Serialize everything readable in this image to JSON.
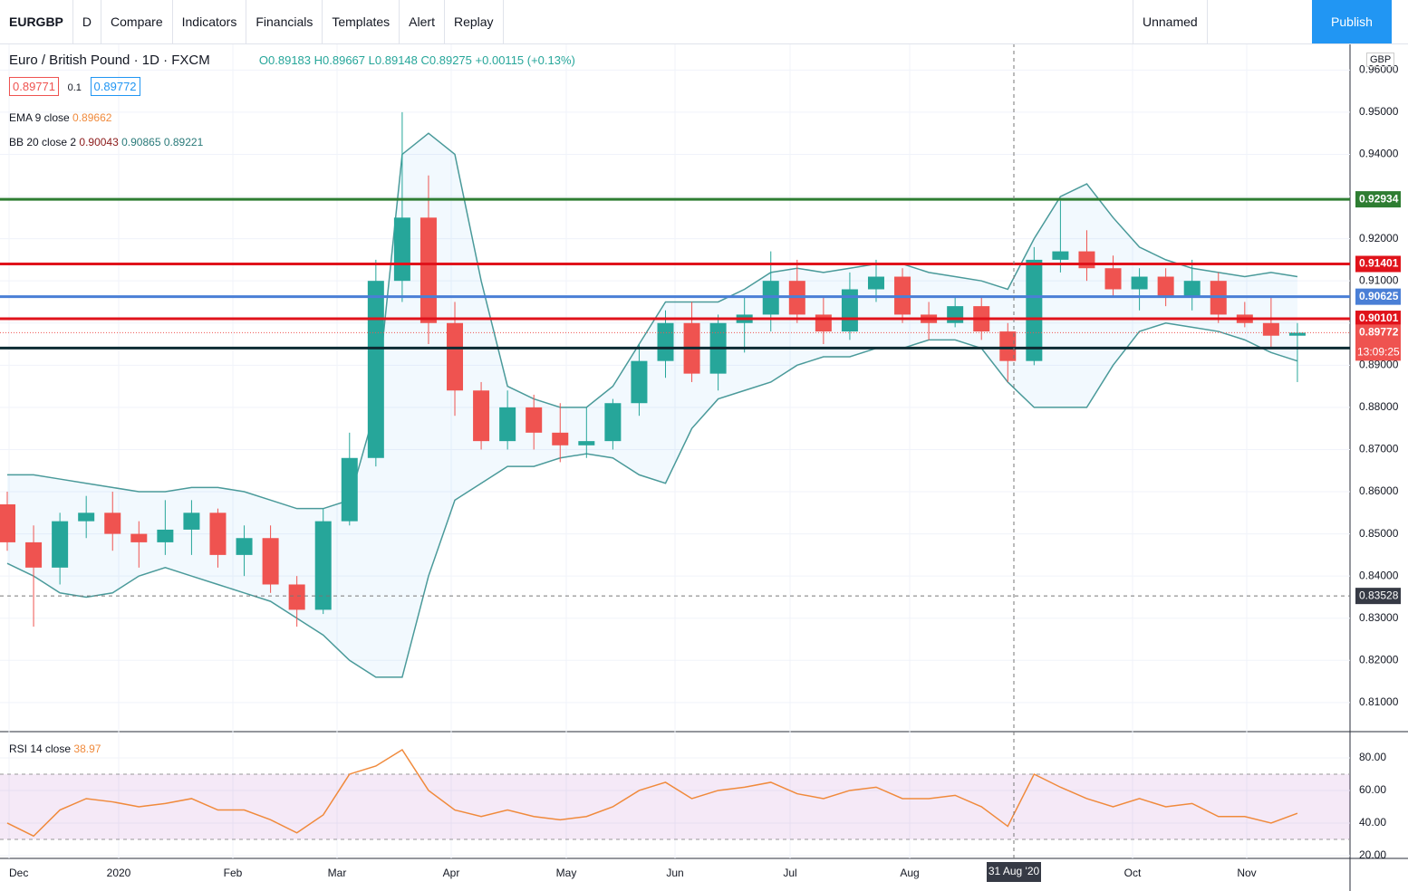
{
  "toolbar": {
    "symbol": "EURGBP",
    "interval": "D",
    "compare": "Compare",
    "indicators": "Indicators",
    "financials": "Financials",
    "templates": "Templates",
    "alert": "Alert",
    "replay": "Replay",
    "layout": "Unnamed",
    "publish": "Publish"
  },
  "legend": {
    "title": "Euro / British Pound · 1D · FXCM",
    "open": "O0.89183",
    "high": "H0.89667",
    "low": "L0.89148",
    "close": "C0.89275",
    "change": "+0.00115 (+0.13%)",
    "bid": "0.89771",
    "spread": "0.1",
    "ask": "0.89772",
    "ema": "EMA 9 close",
    "ema_value": "0.89662",
    "bb": "BB 20 close 2",
    "bb_basis": "0.90043",
    "bb_upper": "0.90865",
    "bb_lower": "0.89221",
    "rsi": "RSI 14 close",
    "rsi_value": "38.97"
  },
  "currency": "GBP",
  "countdown": "13:09:25",
  "crosshair_date": "31 Aug '20",
  "time_axis": [
    "Dec",
    "2020",
    "Feb",
    "Mar",
    "Apr",
    "May",
    "Jun",
    "Jul",
    "Aug",
    "Oct",
    "Nov"
  ],
  "chart_data": [
    {
      "type": "candlestick",
      "up_color": "#26a69a",
      "down_color": "#ef5350",
      "ylim": [
        0.8031,
        0.9663
      ],
      "yticks": [
        {
          "value": 0.81,
          "label": "0.81000"
        },
        {
          "value": 0.82,
          "label": "0.82000"
        },
        {
          "value": 0.83,
          "label": "0.83000"
        },
        {
          "value": 0.84,
          "label": "0.84000"
        },
        {
          "value": 0.85,
          "label": "0.85000"
        },
        {
          "value": 0.86,
          "label": "0.86000"
        },
        {
          "value": 0.87,
          "label": "0.87000"
        },
        {
          "value": 0.88,
          "label": "0.88000"
        },
        {
          "value": 0.89,
          "label": "0.89000"
        },
        {
          "value": 0.9,
          "label": "0.90000"
        },
        {
          "value": 0.91,
          "label": "0.91000"
        },
        {
          "value": 0.92,
          "label": "0.92000"
        },
        {
          "value": 0.93,
          "label": "0.93000"
        },
        {
          "value": 0.94,
          "label": "0.94000"
        },
        {
          "value": 0.95,
          "label": "0.95000"
        },
        {
          "value": 0.96,
          "label": "0.96000"
        }
      ],
      "open": [
        0.857,
        0.848,
        0.842,
        0.853,
        0.855,
        0.85,
        0.848,
        0.851,
        0.855,
        0.845,
        0.849,
        0.838,
        0.832,
        0.853,
        0.868,
        0.91,
        0.925,
        0.9,
        0.884,
        0.872,
        0.88,
        0.874,
        0.871,
        0.872,
        0.881,
        0.891,
        0.9,
        0.888,
        0.9,
        0.902,
        0.91,
        0.902,
        0.898,
        0.908,
        0.911,
        0.902,
        0.9,
        0.904,
        0.898,
        0.891,
        0.915,
        0.917,
        0.913,
        0.908,
        0.911,
        0.906,
        0.91,
        0.902,
        0.9,
        0.897
      ],
      "high": [
        0.86,
        0.852,
        0.855,
        0.859,
        0.86,
        0.853,
        0.858,
        0.858,
        0.856,
        0.852,
        0.852,
        0.84,
        0.856,
        0.874,
        0.915,
        0.95,
        0.935,
        0.905,
        0.886,
        0.884,
        0.883,
        0.881,
        0.88,
        0.882,
        0.895,
        0.903,
        0.905,
        0.902,
        0.906,
        0.917,
        0.915,
        0.906,
        0.912,
        0.915,
        0.913,
        0.905,
        0.906,
        0.906,
        0.9,
        0.918,
        0.929,
        0.922,
        0.916,
        0.913,
        0.913,
        0.915,
        0.912,
        0.905,
        0.906,
        0.9
      ],
      "low": [
        0.846,
        0.828,
        0.838,
        0.849,
        0.846,
        0.842,
        0.845,
        0.845,
        0.842,
        0.84,
        0.836,
        0.828,
        0.831,
        0.852,
        0.866,
        0.905,
        0.895,
        0.878,
        0.87,
        0.87,
        0.87,
        0.867,
        0.868,
        0.87,
        0.878,
        0.887,
        0.886,
        0.884,
        0.893,
        0.898,
        0.9,
        0.895,
        0.896,
        0.905,
        0.9,
        0.896,
        0.899,
        0.896,
        0.886,
        0.89,
        0.912,
        0.91,
        0.906,
        0.903,
        0.904,
        0.903,
        0.9,
        0.899,
        0.894,
        0.886
      ],
      "close": [
        0.848,
        0.842,
        0.853,
        0.855,
        0.85,
        0.848,
        0.851,
        0.855,
        0.845,
        0.849,
        0.838,
        0.832,
        0.853,
        0.868,
        0.91,
        0.925,
        0.9,
        0.884,
        0.872,
        0.88,
        0.874,
        0.871,
        0.872,
        0.881,
        0.891,
        0.9,
        0.888,
        0.9,
        0.902,
        0.91,
        0.902,
        0.898,
        0.908,
        0.911,
        0.902,
        0.9,
        0.904,
        0.898,
        0.891,
        0.915,
        0.917,
        0.913,
        0.908,
        0.911,
        0.906,
        0.91,
        0.902,
        0.9,
        0.897,
        0.8977
      ],
      "bb_upper": [
        0.864,
        0.864,
        0.863,
        0.862,
        0.861,
        0.86,
        0.86,
        0.861,
        0.861,
        0.86,
        0.858,
        0.856,
        0.856,
        0.858,
        0.88,
        0.94,
        0.945,
        0.94,
        0.91,
        0.885,
        0.882,
        0.88,
        0.88,
        0.885,
        0.895,
        0.905,
        0.905,
        0.905,
        0.908,
        0.912,
        0.913,
        0.912,
        0.913,
        0.914,
        0.914,
        0.912,
        0.911,
        0.91,
        0.908,
        0.92,
        0.93,
        0.933,
        0.925,
        0.918,
        0.915,
        0.913,
        0.912,
        0.911,
        0.912,
        0.911
      ],
      "bb_lower": [
        0.843,
        0.84,
        0.836,
        0.835,
        0.836,
        0.84,
        0.842,
        0.84,
        0.838,
        0.836,
        0.834,
        0.83,
        0.826,
        0.82,
        0.816,
        0.816,
        0.84,
        0.858,
        0.862,
        0.866,
        0.866,
        0.868,
        0.869,
        0.868,
        0.864,
        0.862,
        0.875,
        0.882,
        0.884,
        0.886,
        0.89,
        0.892,
        0.892,
        0.894,
        0.894,
        0.896,
        0.896,
        0.894,
        0.886,
        0.88,
        0.88,
        0.88,
        0.89,
        0.898,
        0.9,
        0.899,
        0.898,
        0.896,
        0.893,
        0.891
      ],
      "band_color": "#4a9a9a",
      "levels": [
        {
          "value": 0.92934,
          "color": "#2e7d32"
        },
        {
          "value": 0.91401,
          "color": "#e0131b"
        },
        {
          "value": 0.90625,
          "color": "#4a7fd6"
        },
        {
          "value": 0.90101,
          "color": "#e0131b"
        },
        {
          "value": 0.89406,
          "color": "#0d2b33"
        }
      ],
      "last_price": 0.89772,
      "crosshair_price": 0.83528
    },
    {
      "type": "line",
      "color": "#f08a3c",
      "ylim": [
        18.3,
        96.1
      ],
      "yticks": [
        {
          "value": 20,
          "label": "20.00"
        },
        {
          "value": 40,
          "label": "40.00"
        },
        {
          "value": 60,
          "label": "60.00"
        },
        {
          "value": 80,
          "label": "80.00"
        }
      ],
      "band": [
        30,
        70
      ],
      "values": [
        40,
        32,
        48,
        55,
        53,
        50,
        52,
        55,
        48,
        48,
        42,
        34,
        45,
        70,
        75,
        85,
        60,
        48,
        44,
        48,
        44,
        42,
        44,
        50,
        60,
        65,
        55,
        60,
        62,
        65,
        58,
        55,
        60,
        62,
        55,
        55,
        57,
        50,
        38,
        70,
        62,
        55,
        50,
        55,
        50,
        52,
        44,
        44,
        40,
        46
      ]
    }
  ]
}
